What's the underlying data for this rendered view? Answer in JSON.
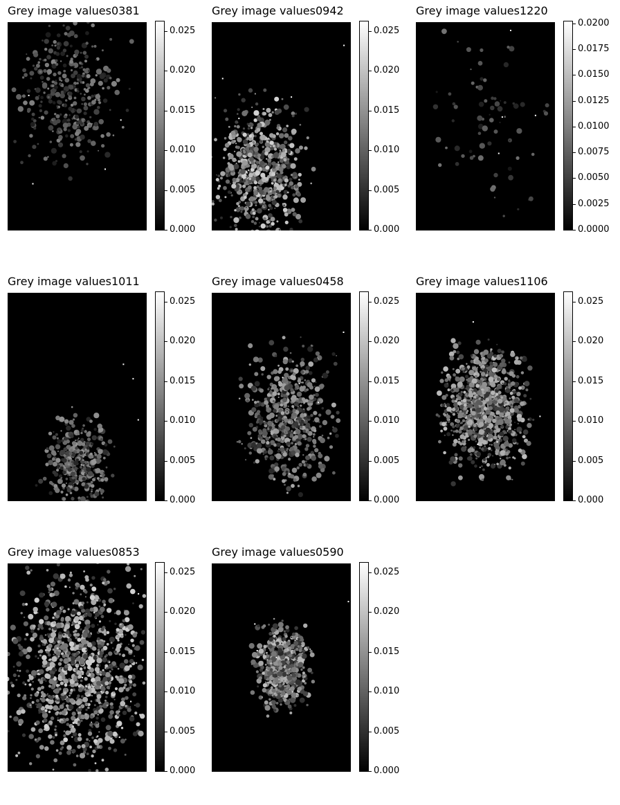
{
  "colors": {
    "background": "#ffffff",
    "image_bg": "#000000",
    "cmap_low": "#000000",
    "cmap_high": "#ffffff"
  },
  "chart_data": [
    {
      "type": "heatmap",
      "title": "Grey image values0381",
      "colormap": "grey",
      "clim": [
        0,
        0.0262
      ],
      "colorbar_ticks": [
        0.0,
        0.005,
        0.01,
        0.015,
        0.02,
        0.025
      ],
      "colorbar_tick_labels": [
        "0.000",
        "0.005",
        "0.010",
        "0.015",
        "0.020",
        "0.025"
      ],
      "density": 0.28,
      "brightness": 0.35,
      "cluster": [
        0.45,
        0.35,
        0.9
      ]
    },
    {
      "type": "heatmap",
      "title": "Grey image values0942",
      "colormap": "grey",
      "clim": [
        0,
        0.0262
      ],
      "colorbar_ticks": [
        0.0,
        0.005,
        0.01,
        0.015,
        0.02,
        0.025
      ],
      "colorbar_tick_labels": [
        "0.000",
        "0.005",
        "0.010",
        "0.015",
        "0.020",
        "0.025"
      ],
      "density": 0.55,
      "brightness": 0.55,
      "cluster": [
        0.35,
        0.7,
        0.8
      ]
    },
    {
      "type": "heatmap",
      "title": "Grey image values1220",
      "colormap": "grey",
      "clim": [
        0,
        0.0202
      ],
      "colorbar_ticks": [
        0.0,
        0.0025,
        0.005,
        0.0075,
        0.01,
        0.0125,
        0.015,
        0.0175,
        0.02
      ],
      "colorbar_tick_labels": [
        "0.0000",
        "0.0025",
        "0.0050",
        "0.0075",
        "0.0100",
        "0.0125",
        "0.0150",
        "0.0175",
        "0.0200"
      ],
      "density": 0.03,
      "brightness": 0.3,
      "cluster": [
        0.5,
        0.5,
        1.0
      ]
    },
    {
      "type": "heatmap",
      "title": "Grey image values1011",
      "colormap": "grey",
      "clim": [
        0,
        0.0262
      ],
      "colorbar_ticks": [
        0.0,
        0.005,
        0.01,
        0.015,
        0.02,
        0.025
      ],
      "colorbar_tick_labels": [
        "0.000",
        "0.005",
        "0.010",
        "0.015",
        "0.020",
        "0.025"
      ],
      "density": 0.32,
      "brightness": 0.4,
      "cluster": [
        0.5,
        0.82,
        0.55
      ]
    },
    {
      "type": "heatmap",
      "title": "Grey image values0458",
      "colormap": "grey",
      "clim": [
        0,
        0.0262
      ],
      "colorbar_ticks": [
        0.0,
        0.005,
        0.01,
        0.015,
        0.02,
        0.025
      ],
      "colorbar_tick_labels": [
        "0.000",
        "0.005",
        "0.010",
        "0.015",
        "0.020",
        "0.025"
      ],
      "density": 0.5,
      "brightness": 0.45,
      "cluster": [
        0.55,
        0.6,
        0.8
      ]
    },
    {
      "type": "heatmap",
      "title": "Grey image values1106",
      "colormap": "grey",
      "clim": [
        0,
        0.0262
      ],
      "colorbar_ticks": [
        0.0,
        0.005,
        0.01,
        0.015,
        0.02,
        0.025
      ],
      "colorbar_tick_labels": [
        "0.000",
        "0.005",
        "0.010",
        "0.015",
        "0.020",
        "0.025"
      ],
      "density": 0.85,
      "brightness": 0.5,
      "cluster": [
        0.5,
        0.55,
        0.75
      ]
    },
    {
      "type": "heatmap",
      "title": "Grey image values0853",
      "colormap": "grey",
      "clim": [
        0,
        0.0262
      ],
      "colorbar_ticks": [
        0.0,
        0.005,
        0.01,
        0.015,
        0.02,
        0.025
      ],
      "colorbar_tick_labels": [
        "0.000",
        "0.005",
        "0.010",
        "0.015",
        "0.020",
        "0.025"
      ],
      "density": 0.95,
      "brightness": 0.55,
      "cluster": [
        0.5,
        0.5,
        1.2
      ]
    },
    {
      "type": "heatmap",
      "title": "Grey image values0590",
      "colormap": "grey",
      "clim": [
        0,
        0.0262
      ],
      "colorbar_ticks": [
        0.0,
        0.005,
        0.01,
        0.015,
        0.02,
        0.025
      ],
      "colorbar_tick_labels": [
        "0.000",
        "0.005",
        "0.010",
        "0.015",
        "0.020",
        "0.025"
      ],
      "density": 0.5,
      "brightness": 0.5,
      "cluster": [
        0.5,
        0.5,
        0.5
      ]
    }
  ]
}
